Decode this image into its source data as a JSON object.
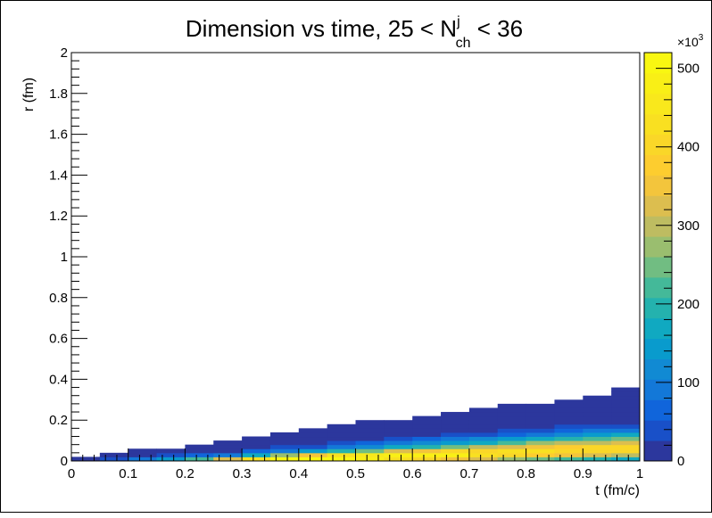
{
  "chart_data": {
    "type": "heatmap",
    "title": {
      "main": "Dimension vs time, 25 < N",
      "sup": "j",
      "sub": "ch",
      "tail": " < 36"
    },
    "xlabel": "t (fm/c)",
    "ylabel": "r (fm)",
    "xlim": [
      0,
      1
    ],
    "ylim": [
      0,
      2
    ],
    "x_ticks": [
      "0",
      "0.1",
      "0.2",
      "0.3",
      "0.4",
      "0.5",
      "0.6",
      "0.7",
      "0.8",
      "0.9",
      "1"
    ],
    "y_ticks": [
      "0",
      "0.2",
      "0.4",
      "0.6",
      "0.8",
      "1",
      "1.2",
      "1.4",
      "1.6",
      "1.8",
      "2"
    ],
    "colorbar": {
      "zlim": [
        0,
        520
      ],
      "ticks": [
        "0",
        "100",
        "200",
        "300",
        "400",
        "500"
      ],
      "multiplier_base": "×10",
      "multiplier_exp": "3"
    },
    "x_bin_width": 0.05,
    "y_bin_width": 0.02,
    "grid": false,
    "columns": [
      {
        "x0": 0.0,
        "values": [
          15
        ]
      },
      {
        "x0": 0.05,
        "values": [
          40,
          8
        ]
      },
      {
        "x0": 0.1,
        "values": [
          80,
          20,
          5
        ]
      },
      {
        "x0": 0.15,
        "values": [
          150,
          35,
          10
        ]
      },
      {
        "x0": 0.2,
        "values": [
          230,
          60,
          18,
          5
        ]
      },
      {
        "x0": 0.25,
        "values": [
          320,
          100,
          25,
          8,
          3
        ]
      },
      {
        "x0": 0.3,
        "values": [
          420,
          180,
          55,
          15,
          5,
          3
        ]
      },
      {
        "x0": 0.35,
        "values": [
          500,
          260,
          90,
          30,
          10,
          5,
          3
        ]
      },
      {
        "x0": 0.4,
        "values": [
          520,
          350,
          140,
          50,
          20,
          8,
          4,
          3
        ]
      },
      {
        "x0": 0.45,
        "values": [
          510,
          420,
          190,
          80,
          35,
          15,
          6,
          4,
          3
        ]
      },
      {
        "x0": 0.5,
        "values": [
          480,
          460,
          250,
          120,
          55,
          25,
          10,
          5,
          3,
          3
        ]
      },
      {
        "x0": 0.55,
        "values": [
          440,
          490,
          320,
          160,
          80,
          40,
          15,
          7,
          4,
          3
        ]
      },
      {
        "x0": 0.6,
        "values": [
          400,
          480,
          360,
          200,
          110,
          60,
          25,
          10,
          5,
          3,
          3
        ]
      },
      {
        "x0": 0.65,
        "values": [
          360,
          470,
          390,
          250,
          150,
          80,
          35,
          15,
          7,
          4,
          3,
          3
        ]
      },
      {
        "x0": 0.7,
        "values": [
          320,
          440,
          410,
          290,
          180,
          110,
          50,
          22,
          10,
          5,
          3,
          3,
          3
        ]
      },
      {
        "x0": 0.75,
        "values": [
          280,
          410,
          420,
          330,
          220,
          140,
          70,
          35,
          15,
          7,
          4,
          3,
          3,
          3
        ]
      },
      {
        "x0": 0.8,
        "values": [
          250,
          380,
          420,
          360,
          260,
          170,
          90,
          50,
          22,
          10,
          5,
          3,
          3,
          3
        ]
      },
      {
        "x0": 0.85,
        "values": [
          220,
          350,
          410,
          380,
          290,
          200,
          120,
          65,
          30,
          15,
          8,
          4,
          3,
          3,
          3
        ]
      },
      {
        "x0": 0.9,
        "values": [
          200,
          330,
          400,
          390,
          310,
          230,
          140,
          80,
          40,
          20,
          10,
          5,
          3,
          3,
          3,
          3
        ]
      },
      {
        "x0": 0.95,
        "values": [
          180,
          310,
          390,
          400,
          330,
          250,
          160,
          95,
          50,
          25,
          12,
          6,
          4,
          3,
          3,
          3,
          3,
          3
        ]
      }
    ]
  }
}
